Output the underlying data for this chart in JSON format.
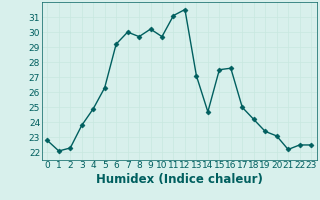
{
  "x": [
    0,
    1,
    2,
    3,
    4,
    5,
    6,
    7,
    8,
    9,
    10,
    11,
    12,
    13,
    14,
    15,
    16,
    17,
    18,
    19,
    20,
    21,
    22,
    23
  ],
  "y": [
    22.8,
    22.1,
    22.3,
    23.8,
    24.9,
    26.3,
    29.2,
    30.0,
    29.7,
    30.2,
    29.7,
    31.1,
    31.5,
    27.1,
    24.7,
    27.5,
    27.6,
    25.0,
    24.2,
    23.4,
    23.1,
    22.2,
    22.5,
    22.5
  ],
  "line_color": "#005f5f",
  "marker": "D",
  "marker_size": 2.5,
  "xlabel": "Humidex (Indice chaleur)",
  "xlim": [
    -0.5,
    23.5
  ],
  "ylim": [
    21.5,
    32.0
  ],
  "yticks": [
    22,
    23,
    24,
    25,
    26,
    27,
    28,
    29,
    30,
    31
  ],
  "xticks": [
    0,
    1,
    2,
    3,
    4,
    5,
    6,
    7,
    8,
    9,
    10,
    11,
    12,
    13,
    14,
    15,
    16,
    17,
    18,
    19,
    20,
    21,
    22,
    23
  ],
  "grid_color": "#c8e8e0",
  "bg_color": "#d8f0ec",
  "tick_fontsize": 6.5,
  "xlabel_fontsize": 8.5,
  "line_width": 1.0
}
